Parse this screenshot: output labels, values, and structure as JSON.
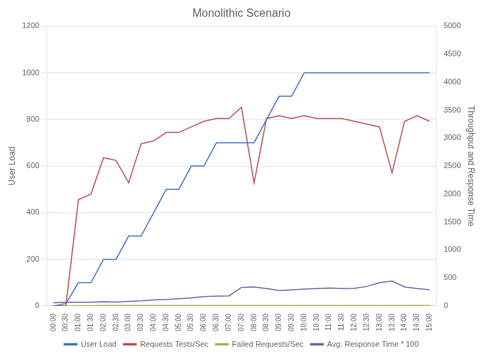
{
  "chart_data": {
    "type": "line",
    "title": "Monolithic Scenario",
    "ylabel": "User Load",
    "y2label": "Throughput and Response Time",
    "categories": [
      "00:00",
      "00:30",
      "01:00",
      "01:30",
      "02:00",
      "02:30",
      "03:00",
      "03:30",
      "04:00",
      "04:30",
      "05:00",
      "05:30",
      "06:00",
      "06:30",
      "07:00",
      "07:30",
      "08:00",
      "08:30",
      "09:00",
      "09:30",
      "10:00",
      "10:30",
      "11:00",
      "11:30",
      "12:00",
      "12:30",
      "13:00",
      "13:30",
      "14:00",
      "14:30",
      "15:00"
    ],
    "series": [
      {
        "name": "User Load",
        "color": "#4472C4",
        "axis": "y",
        "values": [
          0,
          10,
          100,
          100,
          200,
          200,
          300,
          300,
          400,
          500,
          500,
          600,
          600,
          700,
          700,
          700,
          700,
          800,
          900,
          900,
          1000,
          1000,
          1000,
          1000,
          1000,
          1000,
          1000,
          1000,
          1000,
          1000,
          1000
        ]
      },
      {
        "name": "Requests Tests/Sec",
        "color": "#C0504D",
        "axis": "y2",
        "values": [
          0,
          5,
          1900,
          2000,
          2650,
          2600,
          2200,
          2900,
          2950,
          3100,
          3100,
          3200,
          3300,
          3350,
          3350,
          3550,
          2200,
          3350,
          3400,
          3350,
          3400,
          3350,
          3350,
          3350,
          3300,
          3250,
          3200,
          2380,
          3300,
          3400,
          3300
        ]
      },
      {
        "name": "Failed Requests/Sec",
        "color": "#9BBB59",
        "axis": "y2",
        "values": [
          0,
          0,
          5,
          5,
          10,
          8,
          8,
          8,
          8,
          10,
          8,
          8,
          8,
          8,
          8,
          8,
          8,
          8,
          8,
          8,
          8,
          8,
          8,
          8,
          8,
          8,
          8,
          8,
          8,
          8,
          8
        ]
      },
      {
        "name": "Avg. Response Time * 100",
        "color": "#7F5FA0",
        "axis": "y2",
        "values": [
          55,
          65,
          65,
          65,
          75,
          70,
          80,
          90,
          105,
          115,
          130,
          145,
          165,
          175,
          180,
          330,
          340,
          310,
          275,
          285,
          300,
          310,
          320,
          310,
          315,
          350,
          415,
          445,
          340,
          310,
          290
        ]
      }
    ],
    "ylim": [
      0,
      1200
    ],
    "yticks": [
      0,
      200,
      400,
      600,
      800,
      1000,
      1200
    ],
    "y2lim": [
      0,
      5000
    ],
    "y2ticks": [
      0,
      500,
      1000,
      1500,
      2000,
      2500,
      3000,
      3500,
      4000,
      4500,
      5000
    ],
    "grid": true,
    "legend": "bottom"
  }
}
